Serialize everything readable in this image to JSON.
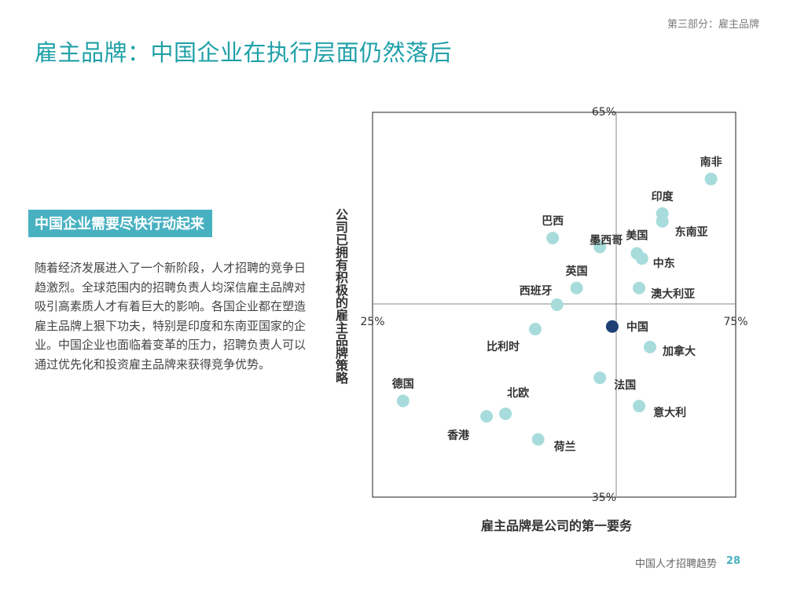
{
  "header": {
    "section_tag": "第三部分：雇主品牌",
    "title": "雇主品牌：中国企业在执行层面仍然落后"
  },
  "callout": "中国企业需要尽快行动起来",
  "body_text": "随着经济发展进入了一个新阶段，人才招聘的竞争日趋激烈。全球范围内的招聘负责人均深信雇主品牌对吸引高素质人才有着巨大的影响。各国企业都在塑造雇主品牌上狠下功夫，特别是印度和东南亚国家的企业。中国企业也面临着变革的压力，招聘负责人可以通过优先化和投资雇主品牌来获得竞争优势。",
  "footer": {
    "text": "中国人才招聘趋势",
    "page": "28"
  },
  "colors": {
    "accent": "#1fa0a8",
    "point": "#a8dcdc",
    "highlight": "#1d3f73",
    "axis": "#888888"
  },
  "chart_data": {
    "type": "scatter",
    "xlabel": "雇主品牌是公司的第一要务",
    "ylabel": "公司已拥有积极的雇主品牌策略",
    "xlim": [
      25,
      75
    ],
    "ylim": [
      35,
      65
    ],
    "x_min_label": "25%",
    "x_max_label": "75%",
    "y_max_label": "65%",
    "y_min_label": "35%",
    "points": [
      {
        "name": "南非",
        "x": 71.6,
        "y": 59.8
      },
      {
        "name": "印度",
        "x": 64.9,
        "y": 57.1
      },
      {
        "name": "东南亚",
        "x": 64.9,
        "y": 56.5
      },
      {
        "name": "巴西",
        "x": 49.8,
        "y": 55.2
      },
      {
        "name": "墨西哥",
        "x": 56.3,
        "y": 54.5
      },
      {
        "name": "美国",
        "x": 61.4,
        "y": 54.0
      },
      {
        "name": "中东",
        "x": 62.1,
        "y": 53.6
      },
      {
        "name": "英国",
        "x": 53.1,
        "y": 51.3
      },
      {
        "name": "澳大利亚",
        "x": 61.7,
        "y": 51.3
      },
      {
        "name": "西班牙",
        "x": 50.4,
        "y": 50.0
      },
      {
        "name": "中国",
        "x": 58.0,
        "y": 48.3,
        "highlight": true
      },
      {
        "name": "比利时",
        "x": 47.4,
        "y": 48.1
      },
      {
        "name": "加拿大",
        "x": 63.2,
        "y": 46.7
      },
      {
        "name": "法国",
        "x": 56.3,
        "y": 44.3
      },
      {
        "name": "德国",
        "x": 29.2,
        "y": 42.5
      },
      {
        "name": "北欧",
        "x": 43.3,
        "y": 41.5
      },
      {
        "name": "香港",
        "x": 40.7,
        "y": 41.3
      },
      {
        "name": "意大利",
        "x": 61.7,
        "y": 42.1
      },
      {
        "name": "荷兰",
        "x": 47.8,
        "y": 39.5
      }
    ]
  }
}
